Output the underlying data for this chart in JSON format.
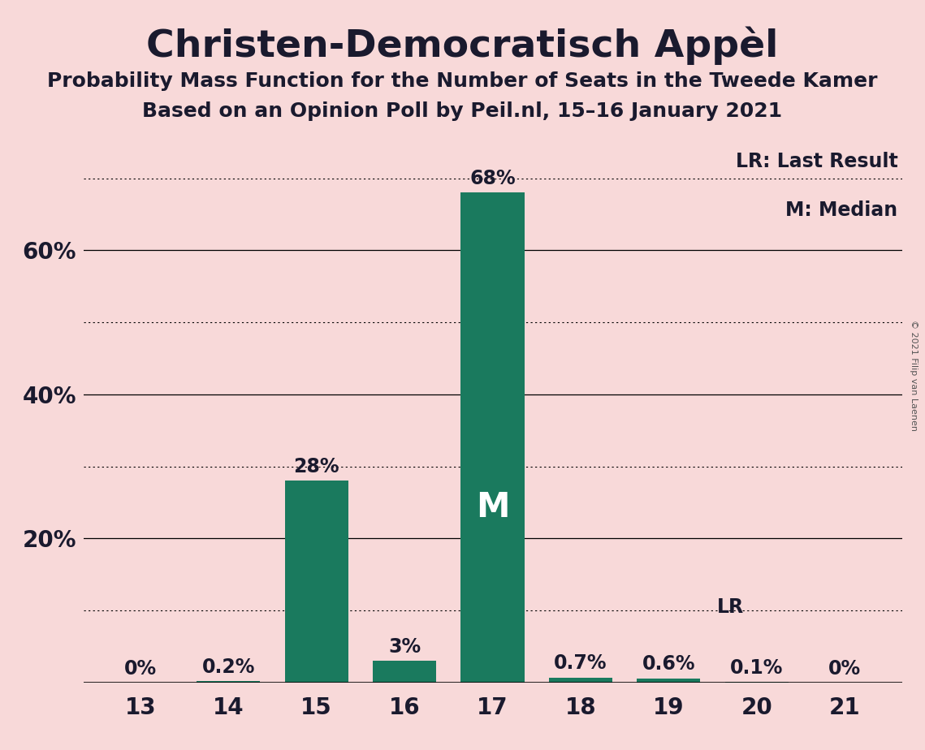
{
  "title": "Christen-Democratisch Appèl",
  "subtitle1": "Probability Mass Function for the Number of Seats in the Tweede Kamer",
  "subtitle2": "Based on an Opinion Poll by Peil.nl, 15–16 January 2021",
  "copyright": "© 2021 Filip van Laenen",
  "categories": [
    13,
    14,
    15,
    16,
    17,
    18,
    19,
    20,
    21
  ],
  "values": [
    0.0,
    0.2,
    28.0,
    3.0,
    68.0,
    0.7,
    0.6,
    0.1,
    0.0
  ],
  "labels": [
    "0%",
    "0.2%",
    "28%",
    "3%",
    "68%",
    "0.7%",
    "0.6%",
    "0.1%",
    "0%"
  ],
  "bar_color": "#1a7a5e",
  "background_color": "#f8d9d9",
  "median_seat": 17,
  "last_result_seat": 19,
  "legend_text1": "LR: Last Result",
  "legend_text2": "M: Median",
  "solid_gridlines": [
    20,
    40,
    60
  ],
  "dotted_gridlines": [
    10,
    30,
    50,
    70
  ],
  "ylim": [
    0,
    76
  ],
  "title_fontsize": 34,
  "subtitle_fontsize": 18,
  "label_fontsize": 17,
  "tick_fontsize": 20
}
